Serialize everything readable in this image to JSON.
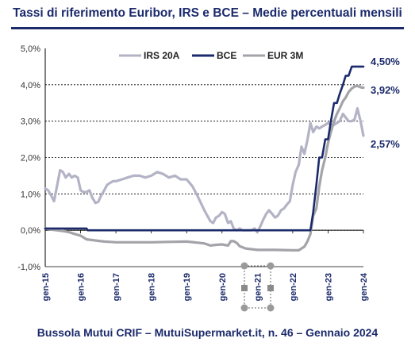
{
  "title": "Tassi di riferimento Euribor, IRS e BCE – Medie percentuali mensili",
  "footer": "Bussola Mutui CRIF – MutuiSupermarket.it, n. 46 – Gennaio 2024",
  "colors": {
    "title": "#1b2a6b",
    "irs": "#b3b3c6",
    "bce": "#1b2a6b",
    "eur": "#a3a3a9",
    "grid": "#000000"
  },
  "chart_data": {
    "type": "line",
    "title": "Tassi di riferimento Euribor, IRS e BCE – Medie percentuali mensili",
    "xlabel": "",
    "ylabel": "",
    "ylim": [
      -1,
      5
    ],
    "xlim": [
      2015.0,
      2024.0
    ],
    "y_ticks": [
      -1,
      0,
      1,
      2,
      3,
      4,
      5
    ],
    "y_tick_labels": [
      "-1,0%",
      "0,0%",
      "1,0%",
      "2,0%",
      "3,0%",
      "4,0%",
      "5,0%"
    ],
    "x_ticks": [
      2015,
      2016,
      2017,
      2018,
      2019,
      2020,
      2021,
      2022,
      2023,
      2024
    ],
    "x_tick_labels": [
      "gen-15",
      "gen-16",
      "gen-17",
      "gen-18",
      "gen-19",
      "gen-20",
      "gen-21",
      "gen-22",
      "gen-23",
      "gen-24"
    ],
    "grid": "horizontal dashed",
    "legend_position": "top",
    "series": [
      {
        "name": "IRS 20A",
        "x": [
          2015.0,
          2015.08,
          2015.17,
          2015.25,
          2015.33,
          2015.42,
          2015.5,
          2015.58,
          2015.67,
          2015.75,
          2015.83,
          2015.92,
          2016.0,
          2016.08,
          2016.17,
          2016.25,
          2016.33,
          2016.42,
          2016.5,
          2016.58,
          2016.67,
          2016.75,
          2016.83,
          2016.92,
          2017.0,
          2017.17,
          2017.33,
          2017.5,
          2017.67,
          2017.83,
          2018.0,
          2018.17,
          2018.33,
          2018.5,
          2018.67,
          2018.83,
          2019.0,
          2019.17,
          2019.33,
          2019.5,
          2019.67,
          2019.75,
          2019.83,
          2019.92,
          2020.0,
          2020.08,
          2020.17,
          2020.25,
          2020.33,
          2020.42,
          2020.5,
          2020.58,
          2020.67,
          2020.75,
          2020.83,
          2020.92,
          2021.0,
          2021.08,
          2021.17,
          2021.25,
          2021.33,
          2021.42,
          2021.5,
          2021.58,
          2021.67,
          2021.75,
          2021.83,
          2021.92,
          2022.0,
          2022.08,
          2022.17,
          2022.25,
          2022.33,
          2022.42,
          2022.5,
          2022.58,
          2022.67,
          2022.75,
          2022.83,
          2022.92,
          2023.0,
          2023.08,
          2023.17,
          2023.25,
          2023.33,
          2023.42,
          2023.5,
          2023.58,
          2023.67,
          2023.75,
          2023.83,
          2023.92,
          2024.0
        ],
        "values": [
          1.15,
          1.1,
          0.95,
          0.8,
          1.2,
          1.65,
          1.6,
          1.45,
          1.55,
          1.45,
          1.5,
          1.45,
          1.1,
          1.05,
          1.05,
          1.1,
          0.9,
          0.75,
          0.78,
          0.95,
          1.1,
          1.25,
          1.3,
          1.35,
          1.35,
          1.4,
          1.45,
          1.5,
          1.5,
          1.45,
          1.5,
          1.6,
          1.55,
          1.45,
          1.5,
          1.4,
          1.4,
          1.2,
          0.9,
          0.55,
          0.25,
          0.2,
          0.35,
          0.4,
          0.5,
          0.45,
          0.2,
          0.25,
          0.05,
          0.0,
          0.05,
          0.0,
          0.0,
          0.0,
          0.0,
          0.05,
          -0.05,
          0.1,
          0.3,
          0.45,
          0.55,
          0.45,
          0.35,
          0.4,
          0.55,
          0.6,
          0.7,
          0.8,
          1.25,
          1.6,
          1.8,
          2.3,
          2.1,
          2.5,
          2.95,
          2.7,
          2.85,
          2.8,
          2.85,
          2.9,
          2.95,
          2.9,
          2.9,
          2.95,
          3.0,
          3.2,
          3.1,
          3.0,
          3.0,
          3.05,
          3.35,
          3.0,
          2.6
        ],
        "end_label": "2,57%"
      },
      {
        "name": "BCE",
        "x": [
          2015.0,
          2015.17,
          2015.33,
          2015.5,
          2015.67,
          2015.83,
          2016.0,
          2016.08,
          2016.17,
          2016.2,
          2017.0,
          2018.0,
          2019.0,
          2020.0,
          2021.0,
          2022.0,
          2022.5,
          2022.58,
          2022.67,
          2022.75,
          2022.83,
          2022.92,
          2023.0,
          2023.08,
          2023.17,
          2023.25,
          2023.33,
          2023.42,
          2023.5,
          2023.58,
          2023.67,
          2023.75,
          2023.83,
          2023.92,
          2024.0
        ],
        "values": [
          0.05,
          0.05,
          0.05,
          0.05,
          0.05,
          0.05,
          0.05,
          0.05,
          0.05,
          0.0,
          0.0,
          0.0,
          0.0,
          0.0,
          0.0,
          0.0,
          0.0,
          0.5,
          1.25,
          2.0,
          2.0,
          2.5,
          2.5,
          3.0,
          3.5,
          3.5,
          3.75,
          4.0,
          4.25,
          4.25,
          4.5,
          4.5,
          4.5,
          4.5,
          4.5
        ],
        "end_label": "4,50%"
      },
      {
        "name": "EUR 3M",
        "x": [
          2015.0,
          2015.17,
          2015.33,
          2015.5,
          2015.67,
          2015.83,
          2016.0,
          2016.17,
          2016.33,
          2016.5,
          2016.67,
          2016.83,
          2017.0,
          2017.5,
          2018.0,
          2018.5,
          2019.0,
          2019.5,
          2019.67,
          2019.83,
          2020.0,
          2020.17,
          2020.25,
          2020.33,
          2020.42,
          2020.5,
          2020.67,
          2020.83,
          2021.0,
          2021.5,
          2022.0,
          2022.17,
          2022.33,
          2022.42,
          2022.5,
          2022.58,
          2022.67,
          2022.75,
          2022.83,
          2022.92,
          2023.0,
          2023.08,
          2023.17,
          2023.25,
          2023.33,
          2023.42,
          2023.5,
          2023.58,
          2023.67,
          2023.75,
          2023.83,
          2023.92,
          2024.0
        ],
        "values": [
          0.05,
          0.02,
          0.0,
          -0.02,
          -0.05,
          -0.1,
          -0.15,
          -0.25,
          -0.27,
          -0.29,
          -0.31,
          -0.32,
          -0.33,
          -0.33,
          -0.33,
          -0.32,
          -0.31,
          -0.36,
          -0.42,
          -0.4,
          -0.39,
          -0.42,
          -0.3,
          -0.3,
          -0.35,
          -0.44,
          -0.5,
          -0.52,
          -0.54,
          -0.54,
          -0.55,
          -0.55,
          -0.45,
          -0.3,
          -0.1,
          0.4,
          0.6,
          1.2,
          1.65,
          2.0,
          2.4,
          2.7,
          3.0,
          3.2,
          3.35,
          3.55,
          3.65,
          3.8,
          3.9,
          3.95,
          3.97,
          3.93,
          3.92
        ],
        "end_label": "3,92%"
      }
    ]
  }
}
